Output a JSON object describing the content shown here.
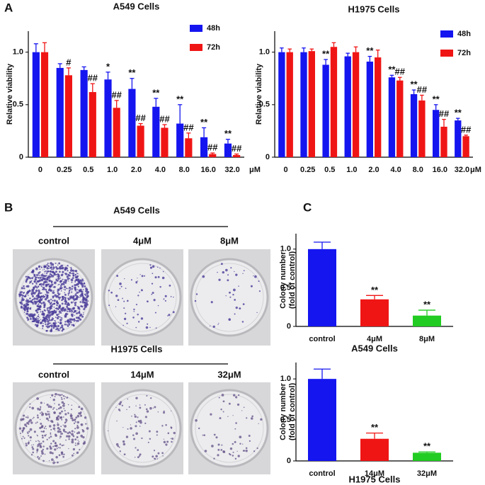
{
  "panel_labels": [
    "A",
    "B",
    "C"
  ],
  "plates": {
    "groups": [
      {
        "title": "A549 Cells",
        "labels": [
          "control",
          "4μM",
          "8μM"
        ]
      },
      {
        "title": "H1975 Cells",
        "labels": [
          "control",
          "14μM",
          "32μM"
        ]
      }
    ]
  },
  "chart_data": [
    {
      "type": "bar",
      "title": "A549 Cells",
      "y_label": "Relative viability",
      "x_unit": "μM",
      "categories": [
        "0",
        "0.25",
        "0.5",
        "1.0",
        "2.0",
        "4.0",
        "8.0",
        "16.0",
        "32.0"
      ],
      "ylim": [
        0,
        1.2
      ],
      "yticks": [
        0,
        0.5,
        {
          "value": 1,
          "label": "1.0"
        }
      ],
      "legend": "top-right",
      "series": [
        {
          "name": "48h",
          "color": "#1515f0",
          "values": [
            1.0,
            0.85,
            0.83,
            0.74,
            0.65,
            0.48,
            0.32,
            0.19,
            0.13
          ],
          "errors": [
            0.08,
            0.04,
            0.03,
            0.07,
            0.1,
            0.08,
            0.18,
            0.09,
            0.04
          ],
          "annotations": [
            null,
            null,
            null,
            "*",
            "**",
            "**",
            "**",
            "**",
            "**"
          ]
        },
        {
          "name": "72h",
          "color": "#f01515",
          "values": [
            1.0,
            0.78,
            0.62,
            0.47,
            0.3,
            0.28,
            0.18,
            0.03,
            0.02
          ],
          "errors": [
            0.09,
            0.07,
            0.08,
            0.07,
            0.02,
            0.03,
            0.05,
            0.01,
            0.01
          ],
          "annotations": [
            null,
            "#",
            "##",
            "##",
            "##",
            "##",
            "##",
            "##",
            "##"
          ]
        }
      ]
    },
    {
      "type": "bar",
      "title": "H1975 Cells",
      "y_label": "Relative viability",
      "x_unit": "μM",
      "categories": [
        "0",
        "0.25",
        "0.5",
        "1.0",
        "2.0",
        "4.0",
        "8.0",
        "16.0",
        "32.0"
      ],
      "ylim": [
        0,
        1.2
      ],
      "yticks": [
        0,
        0.5,
        {
          "value": 1,
          "label": "1.0"
        }
      ],
      "legend": "top-right",
      "series": [
        {
          "name": "48h",
          "color": "#1515f0",
          "values": [
            1.0,
            1.0,
            0.88,
            0.96,
            0.91,
            0.76,
            0.6,
            0.45,
            0.35
          ],
          "errors": [
            0.04,
            0.04,
            0.05,
            0.03,
            0.05,
            0.02,
            0.04,
            0.05,
            0.02
          ],
          "annotations": [
            null,
            null,
            "**",
            null,
            "**",
            "**",
            "**",
            "**",
            "**"
          ]
        },
        {
          "name": "72h",
          "color": "#f01515",
          "values": [
            1.0,
            1.01,
            1.05,
            1.0,
            0.95,
            0.73,
            0.54,
            0.29,
            0.2
          ],
          "errors": [
            0.03,
            0.02,
            0.04,
            0.05,
            0.07,
            0.03,
            0.05,
            0.07,
            0.01
          ],
          "annotations": [
            null,
            null,
            null,
            null,
            null,
            "##",
            "##",
            "##",
            "##"
          ]
        }
      ]
    },
    {
      "type": "bar",
      "x_label": "A549 Cells",
      "y_label": [
        "Colony number",
        "(fold of control)"
      ],
      "categories": [
        "control",
        "4μM",
        "8μM"
      ],
      "values": [
        1.0,
        0.35,
        0.14
      ],
      "errors": [
        0.09,
        0.05,
        0.07
      ],
      "colors": [
        "#1515f0",
        "#f01515",
        "#22cc22"
      ],
      "annotations": [
        null,
        "**",
        "**"
      ],
      "ylim": [
        0,
        1.2
      ],
      "yticks": [
        0,
        0.5,
        {
          "value": 1,
          "label": "1.0"
        }
      ]
    },
    {
      "type": "bar",
      "x_label": "H1975 Cells",
      "y_label": [
        "Colony number",
        "(fold of control)"
      ],
      "categories": [
        "control",
        "14μM",
        "32μM"
      ],
      "values": [
        1.0,
        0.27,
        0.1
      ],
      "errors": [
        0.12,
        0.07,
        0.01
      ],
      "colors": [
        "#1515f0",
        "#f01515",
        "#22cc22"
      ],
      "annotations": [
        null,
        "**",
        "**"
      ],
      "ylim": [
        0,
        1.2
      ],
      "yticks": [
        0,
        0.5,
        {
          "value": 1,
          "label": "1.0"
        }
      ]
    }
  ]
}
